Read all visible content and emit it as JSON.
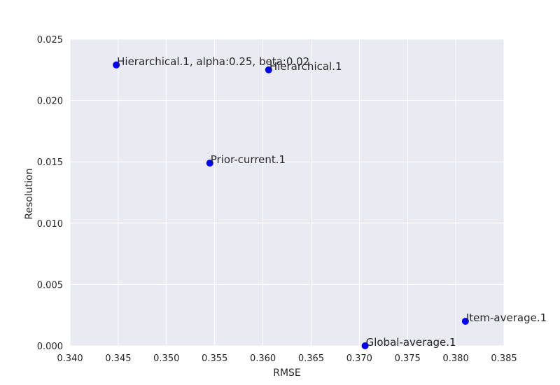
{
  "chart_data": {
    "type": "scatter",
    "title": "",
    "xlabel": "RMSE",
    "ylabel": "Resolution",
    "xlim": [
      0.34,
      0.385
    ],
    "ylim": [
      0.0,
      0.025
    ],
    "xticks": [
      "0.340",
      "0.345",
      "0.350",
      "0.355",
      "0.360",
      "0.365",
      "0.370",
      "0.375",
      "0.380",
      "0.385"
    ],
    "yticks": [
      "0.000",
      "0.005",
      "0.010",
      "0.015",
      "0.020",
      "0.025"
    ],
    "grid": true,
    "colors": {
      "background": "#eaeaf2",
      "grid": "#ffffff",
      "marker": "#0000ff"
    },
    "points": [
      {
        "label": "Hierarchical.1, alpha:0.25, beta:0.02",
        "x": 0.3448,
        "y": 0.0229
      },
      {
        "label": "Hierarchical.1",
        "x": 0.3606,
        "y": 0.0225
      },
      {
        "label": "Prior-current.1",
        "x": 0.3545,
        "y": 0.0149
      },
      {
        "label": "Item-average.1",
        "x": 0.381,
        "y": 0.002
      },
      {
        "label": "Global-average.1",
        "x": 0.3706,
        "y": 0.0
      }
    ]
  }
}
